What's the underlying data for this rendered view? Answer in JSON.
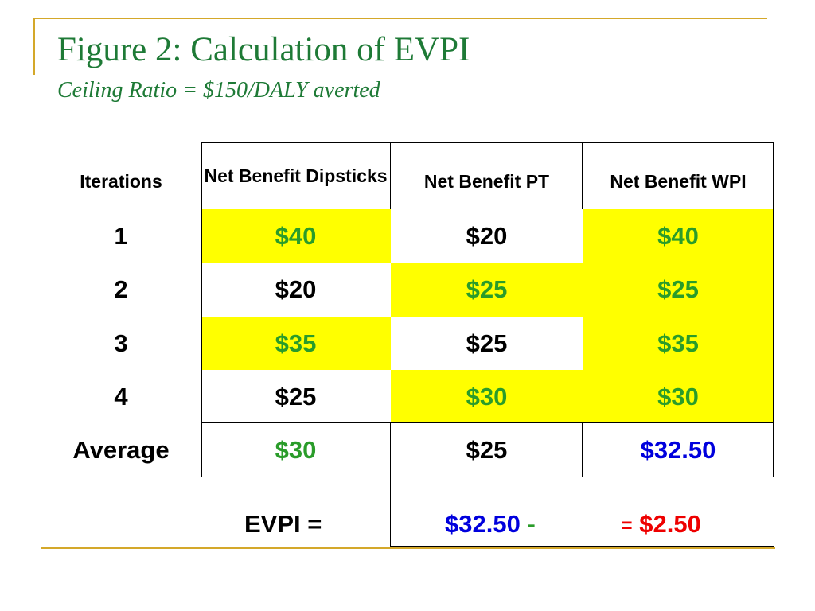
{
  "slide": {
    "title": "Figure 2: Calculation of  EVPI",
    "subtitle": "Ceiling Ratio = $150/DALY averted"
  },
  "colors": {
    "accent_line": "#d4a82a",
    "title_green": "#1e7a36",
    "highlight_yellow": "#ffff00",
    "value_green": "#2a9c2a",
    "value_blue": "#0000dd",
    "value_red": "#ee0000"
  },
  "table": {
    "headers": {
      "iterations": "Iterations",
      "dipsticks": "Net Benefit Dipsticks",
      "pt": "Net Benefit PT",
      "wpi": "Net Benefit WPI"
    },
    "rows": [
      {
        "iteration": "1",
        "dipsticks": "$40",
        "pt": "$20",
        "wpi": "$40"
      },
      {
        "iteration": "2",
        "dipsticks": "$20",
        "pt": "$25",
        "wpi": "$25"
      },
      {
        "iteration": "3",
        "dipsticks": "$35",
        "pt": "$25",
        "wpi": "$35"
      },
      {
        "iteration": "4",
        "dipsticks": "$25",
        "pt": "$30",
        "wpi": "$30"
      }
    ],
    "average": {
      "label": "Average",
      "dipsticks": "$30",
      "pt": "$25",
      "wpi": "$32.50"
    }
  },
  "evpi": {
    "label": "EVPI =",
    "minuend": "$32.50",
    "minus": "-",
    "equals": "=",
    "result": "$2.50"
  }
}
